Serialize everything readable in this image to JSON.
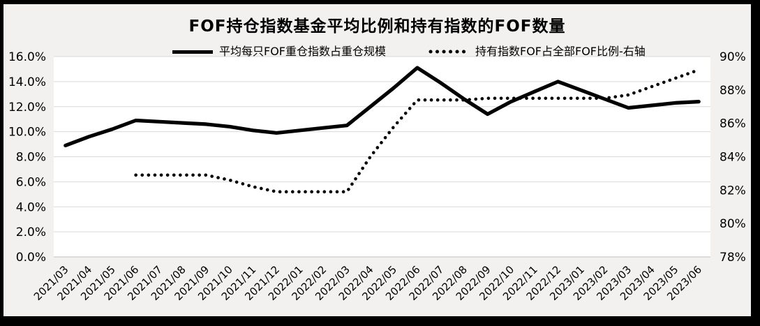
{
  "title": "FOF持仓指数基金平均比例和持有指数的FOF数量",
  "legend": [
    {
      "label": "平均每只FOF重仓指数占重仓规模",
      "style": "solid"
    },
    {
      "label": "持有指数FOF占全部FOF比例-右轴",
      "style": "dotted"
    }
  ],
  "colors": {
    "line": "#000000",
    "grid": "#d9d9d9",
    "axis": "#c0c0c0",
    "background": "#f2f1f0",
    "plot_background": "#ffffff",
    "text": "#000000",
    "border": "#000000"
  },
  "chart_data": {
    "type": "line",
    "title": "FOF持仓指数基金平均比例和持有指数的FOF数量",
    "grid": "horizontal",
    "legend_position": "top",
    "categories": [
      "2021/03",
      "2021/04",
      "2021/05",
      "2021/06",
      "2021/07",
      "2021/08",
      "2021/09",
      "2021/10",
      "2021/11",
      "2021/12",
      "2022/01",
      "2022/02",
      "2022/03",
      "2022/04",
      "2022/05",
      "2022/06",
      "2022/07",
      "2022/08",
      "2022/09",
      "2022/10",
      "2022/11",
      "2022/12",
      "2023/01",
      "2023/02",
      "2023/03",
      "2023/04",
      "2023/05",
      "2023/06"
    ],
    "series": [
      {
        "name": "平均每只FOF重仓指数占重仓规模",
        "axis": "left",
        "style": "solid",
        "unit": "%",
        "values": [
          8.9,
          9.6,
          10.2,
          10.9,
          10.8,
          10.7,
          10.6,
          10.4,
          10.1,
          9.9,
          10.1,
          10.3,
          10.5,
          12.0,
          13.5,
          15.1,
          13.9,
          12.6,
          11.4,
          12.4,
          13.2,
          14.0,
          13.3,
          12.6,
          11.9,
          12.1,
          12.3,
          12.4
        ]
      },
      {
        "name": "持有指数FOF占全部FOF比例-右轴",
        "axis": "right",
        "style": "dotted",
        "unit": "%",
        "values": [
          null,
          null,
          null,
          82.9,
          82.9,
          82.9,
          82.9,
          82.6,
          82.2,
          81.9,
          81.9,
          81.9,
          81.9,
          84.0,
          85.8,
          87.4,
          87.4,
          87.4,
          87.5,
          87.5,
          87.5,
          87.5,
          87.5,
          87.5,
          87.7,
          88.2,
          88.7,
          89.2
        ]
      }
    ],
    "left_axis": {
      "min": 0,
      "max": 16,
      "ticks": [
        "16.0%",
        "14.0%",
        "12.0%",
        "10.0%",
        "8.0%",
        "6.0%",
        "4.0%",
        "2.0%",
        "0.0%"
      ]
    },
    "right_axis": {
      "min": 78,
      "max": 90,
      "ticks": [
        "90%",
        "88%",
        "86%",
        "84%",
        "82%",
        "80%",
        "78%"
      ]
    }
  }
}
